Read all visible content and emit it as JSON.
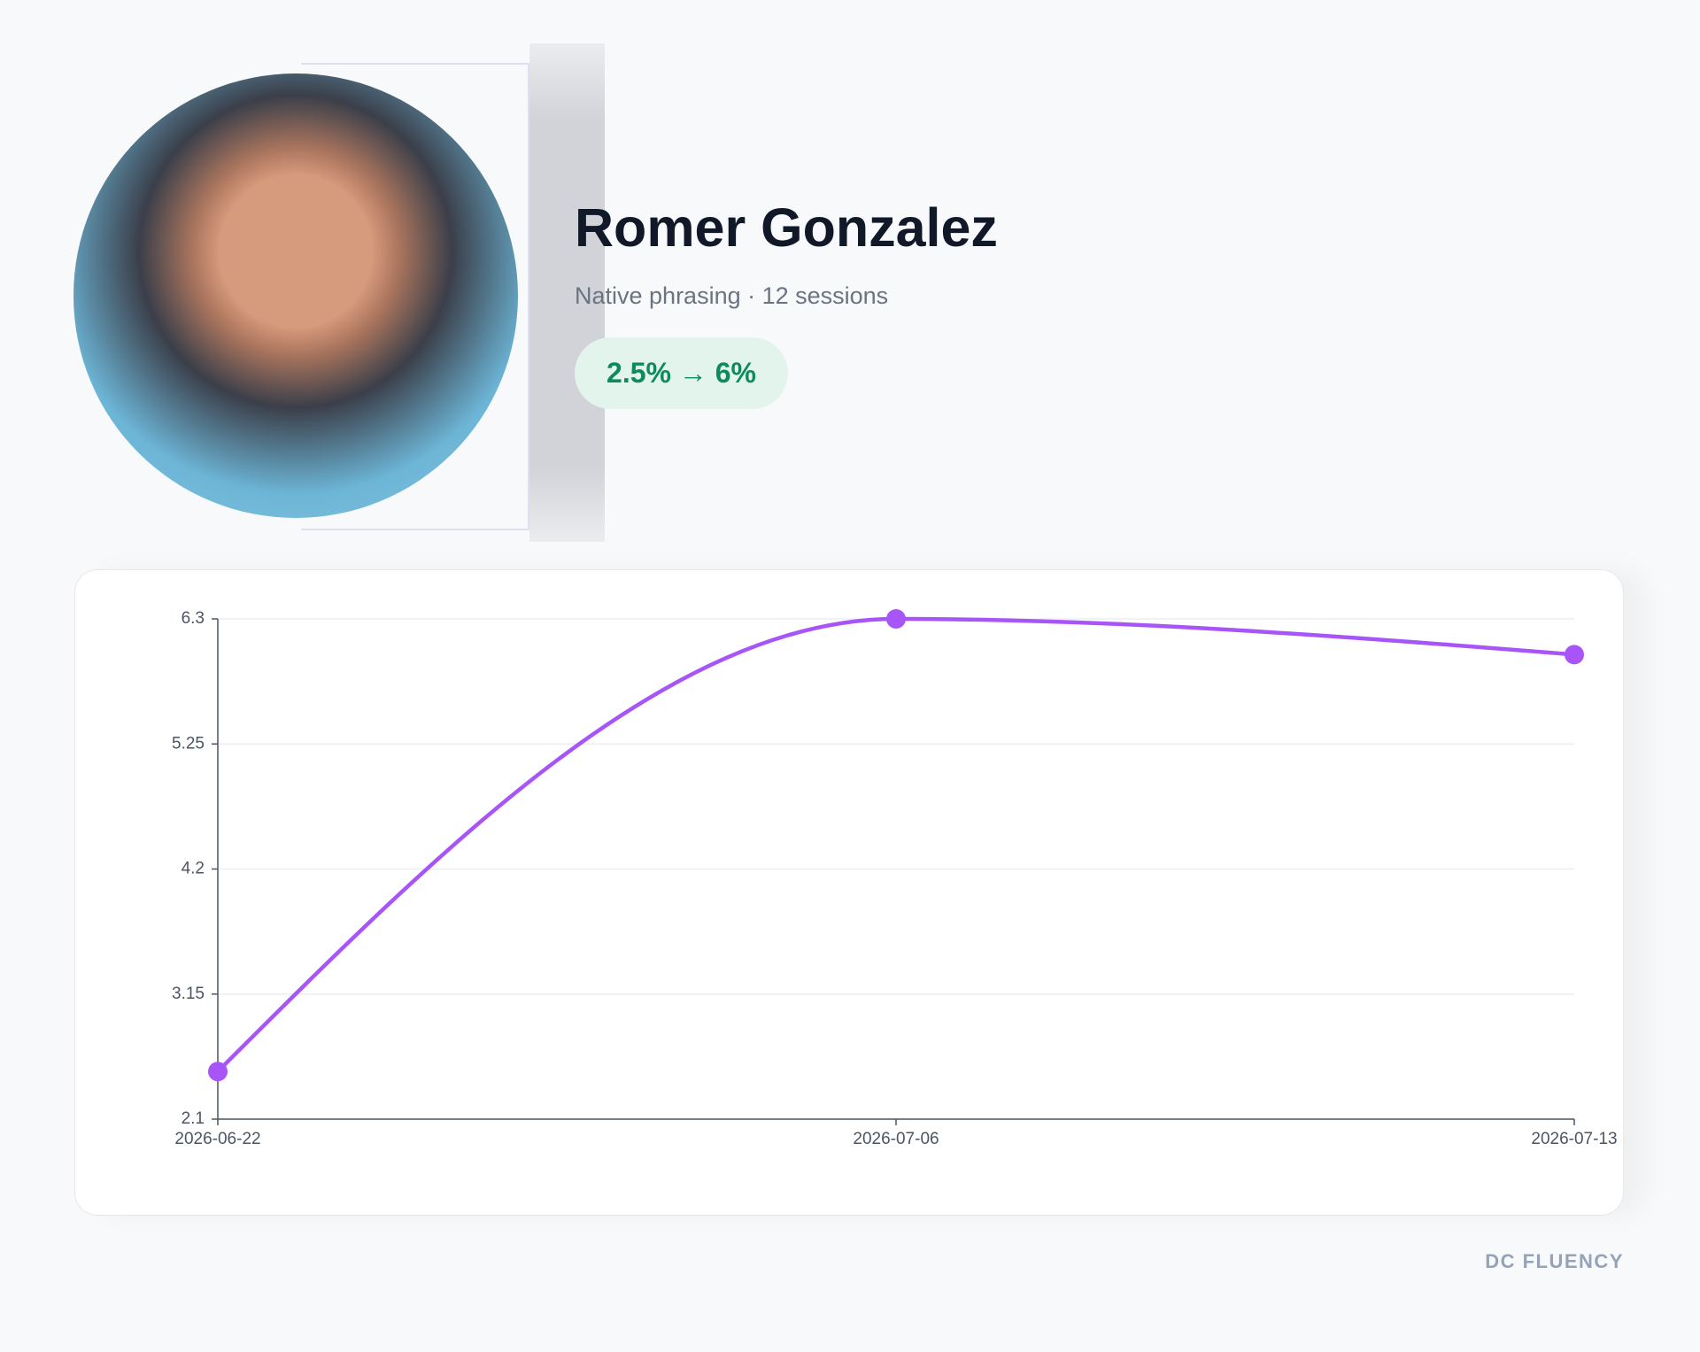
{
  "profile": {
    "name": "Romer Gonzalez",
    "subtitle": "Native phrasing · 12 sessions",
    "badge": "2.5% → 6%"
  },
  "footer": "DC FLUENCY",
  "chart_data": {
    "type": "line",
    "categories": [
      "2026-06-22",
      "2026-07-06",
      "2026-07-13"
    ],
    "series": [
      {
        "color": "#a855f7",
        "values": [
          2.5,
          6.3,
          6.0
        ]
      }
    ],
    "ylim": [
      2.1,
      6.3
    ],
    "yticks": [
      2.1,
      3.15,
      4.2,
      5.25,
      6.3
    ],
    "grid": true
  }
}
